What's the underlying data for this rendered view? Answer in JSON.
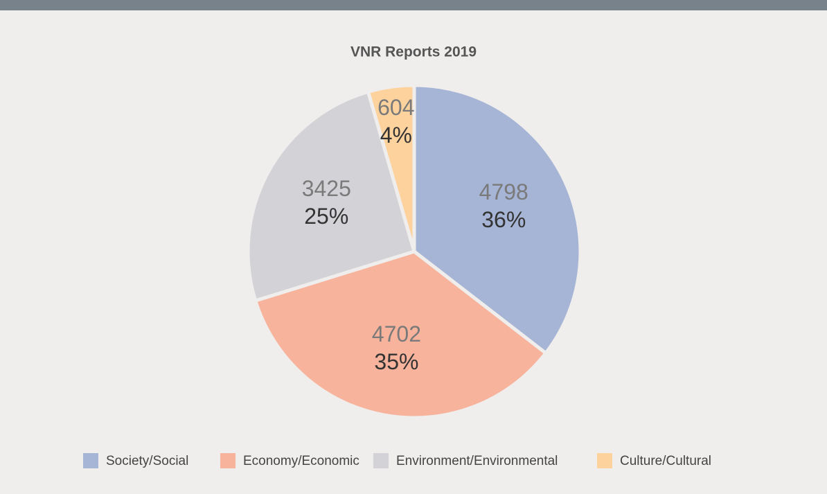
{
  "chart_data": {
    "type": "pie",
    "title": "VNR Reports 2019",
    "categories": [
      "Society/Social",
      "Economy/Economic",
      "Environment/Environmental",
      "Culture/Cultural"
    ],
    "values": [
      4798,
      4702,
      3425,
      604
    ],
    "percent_labels": [
      "36%",
      "35%",
      "25%",
      "4%"
    ],
    "colors": [
      "#a6b5d6",
      "#f7b39b",
      "#d3d2d6",
      "#fdd29d"
    ],
    "legend": "bottom"
  }
}
